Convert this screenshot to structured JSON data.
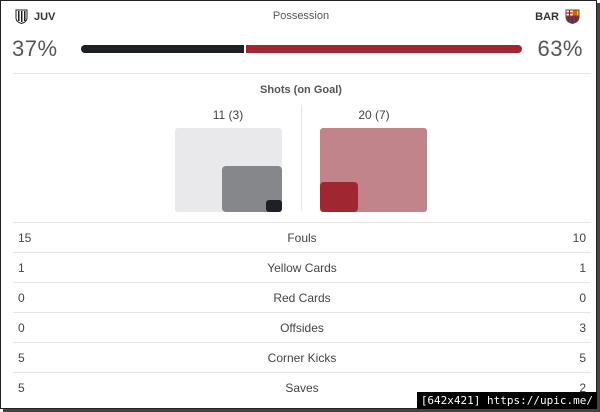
{
  "header": {
    "home_team": "JUV",
    "away_team": "BAR",
    "title": "Possession"
  },
  "possession": {
    "home_pct_label": "37%",
    "away_pct_label": "63%",
    "home_fraction": 0.37,
    "home_color": "#1e2026",
    "away_color": "#a02631"
  },
  "shots": {
    "title": "Shots (on Goal)",
    "home_label": "11 (3)",
    "away_label": "20 (7)"
  },
  "stats": [
    {
      "home": "15",
      "label": "Fouls",
      "away": "10"
    },
    {
      "home": "1",
      "label": "Yellow Cards",
      "away": "1"
    },
    {
      "home": "0",
      "label": "Red Cards",
      "away": "0"
    },
    {
      "home": "0",
      "label": "Offsides",
      "away": "3"
    },
    {
      "home": "5",
      "label": "Corner Kicks",
      "away": "5"
    },
    {
      "home": "5",
      "label": "Saves",
      "away": "2"
    }
  ],
  "watermark": "[642x421] https://upic.me/",
  "icons": {
    "home_crest": "juventus-crest-icon",
    "away_crest": "barcelona-crest-icon"
  }
}
